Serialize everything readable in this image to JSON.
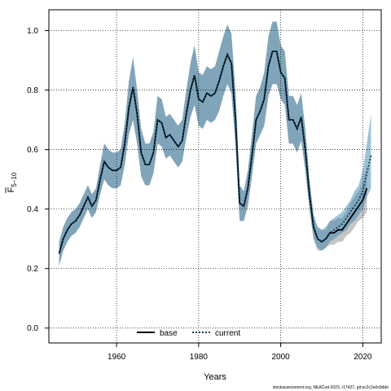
{
  "chart_data": {
    "type": "line",
    "xlabel": "Years",
    "ylabel_main": "F",
    "ylabel_sub": "5−10",
    "xlim": [
      1943.5,
      2024.5
    ],
    "ylim": [
      -0.05,
      1.07
    ],
    "xticks": [
      1960,
      1980,
      2000,
      2020
    ],
    "yticks": [
      0.0,
      0.2,
      0.4,
      0.6,
      0.8,
      1.0
    ],
    "ytick_labels": [
      "0.0",
      "0.2",
      "0.4",
      "0.6",
      "0.8",
      "1.0"
    ],
    "grid": true,
    "legend_placement": "bottom-center",
    "footer": "stockassessment.org, NEACod-2023, r17427, git:ec2c2a0c8dde",
    "series": [
      {
        "name": "base",
        "color": "#000000",
        "band_color": "#7f7f7f",
        "line_style": "solid",
        "x": [
          1946,
          1947,
          1948,
          1949,
          1950,
          1951,
          1952,
          1953,
          1954,
          1955,
          1956,
          1957,
          1958,
          1959,
          1960,
          1961,
          1962,
          1963,
          1964,
          1965,
          1966,
          1967,
          1968,
          1969,
          1970,
          1971,
          1972,
          1973,
          1974,
          1975,
          1976,
          1977,
          1978,
          1979,
          1980,
          1981,
          1982,
          1983,
          1984,
          1985,
          1986,
          1987,
          1988,
          1989,
          1990,
          1991,
          1992,
          1993,
          1994,
          1995,
          1996,
          1997,
          1998,
          1999,
          2000,
          2001,
          2002,
          2003,
          2004,
          2005,
          2006,
          2007,
          2008,
          2009,
          2010,
          2011,
          2012,
          2013,
          2014,
          2015,
          2016,
          2017,
          2018,
          2019,
          2020,
          2021
        ],
        "y": [
          0.25,
          0.3,
          0.33,
          0.35,
          0.36,
          0.38,
          0.41,
          0.44,
          0.41,
          0.43,
          0.5,
          0.56,
          0.54,
          0.53,
          0.53,
          0.54,
          0.62,
          0.74,
          0.81,
          0.72,
          0.59,
          0.55,
          0.55,
          0.59,
          0.7,
          0.69,
          0.64,
          0.65,
          0.63,
          0.61,
          0.63,
          0.72,
          0.8,
          0.85,
          0.77,
          0.76,
          0.79,
          0.78,
          0.79,
          0.83,
          0.88,
          0.92,
          0.89,
          0.7,
          0.42,
          0.41,
          0.47,
          0.58,
          0.7,
          0.73,
          0.77,
          0.88,
          0.93,
          0.93,
          0.86,
          0.84,
          0.7,
          0.7,
          0.67,
          0.71,
          0.6,
          0.45,
          0.34,
          0.3,
          0.29,
          0.3,
          0.32,
          0.32,
          0.33,
          0.33,
          0.35,
          0.37,
          0.39,
          0.41,
          0.43,
          0.47
        ],
        "y_low": [
          0.21,
          0.26,
          0.29,
          0.31,
          0.32,
          0.34,
          0.37,
          0.4,
          0.37,
          0.39,
          0.45,
          0.5,
          0.48,
          0.47,
          0.47,
          0.48,
          0.55,
          0.65,
          0.7,
          0.62,
          0.51,
          0.48,
          0.48,
          0.52,
          0.62,
          0.61,
          0.57,
          0.58,
          0.56,
          0.54,
          0.56,
          0.64,
          0.71,
          0.75,
          0.68,
          0.67,
          0.7,
          0.69,
          0.7,
          0.73,
          0.78,
          0.82,
          0.79,
          0.61,
          0.36,
          0.36,
          0.41,
          0.51,
          0.62,
          0.65,
          0.68,
          0.78,
          0.82,
          0.82,
          0.77,
          0.75,
          0.62,
          0.62,
          0.59,
          0.63,
          0.53,
          0.4,
          0.3,
          0.26,
          0.26,
          0.27,
          0.28,
          0.28,
          0.29,
          0.29,
          0.31,
          0.32,
          0.34,
          0.36,
          0.37,
          0.39
        ],
        "y_high": [
          0.29,
          0.34,
          0.37,
          0.39,
          0.4,
          0.42,
          0.45,
          0.48,
          0.45,
          0.47,
          0.55,
          0.62,
          0.6,
          0.59,
          0.59,
          0.6,
          0.69,
          0.83,
          0.91,
          0.8,
          0.67,
          0.62,
          0.62,
          0.66,
          0.78,
          0.77,
          0.71,
          0.72,
          0.7,
          0.68,
          0.7,
          0.8,
          0.89,
          0.95,
          0.86,
          0.85,
          0.88,
          0.87,
          0.88,
          0.93,
          0.98,
          1.02,
          0.99,
          0.79,
          0.48,
          0.46,
          0.53,
          0.65,
          0.78,
          0.81,
          0.86,
          0.98,
          1.03,
          1.03,
          0.95,
          0.93,
          0.78,
          0.78,
          0.75,
          0.79,
          0.67,
          0.5,
          0.38,
          0.34,
          0.33,
          0.33,
          0.36,
          0.36,
          0.37,
          0.37,
          0.39,
          0.42,
          0.44,
          0.46,
          0.49,
          0.55
        ]
      },
      {
        "name": "current",
        "color": "#0f3d57",
        "band_color": "#3b86b0",
        "line_style": "dotted",
        "x": [
          1946,
          1947,
          1948,
          1949,
          1950,
          1951,
          1952,
          1953,
          1954,
          1955,
          1956,
          1957,
          1958,
          1959,
          1960,
          1961,
          1962,
          1963,
          1964,
          1965,
          1966,
          1967,
          1968,
          1969,
          1970,
          1971,
          1972,
          1973,
          1974,
          1975,
          1976,
          1977,
          1978,
          1979,
          1980,
          1981,
          1982,
          1983,
          1984,
          1985,
          1986,
          1987,
          1988,
          1989,
          1990,
          1991,
          1992,
          1993,
          1994,
          1995,
          1996,
          1997,
          1998,
          1999,
          2000,
          2001,
          2002,
          2003,
          2004,
          2005,
          2006,
          2007,
          2008,
          2009,
          2010,
          2011,
          2012,
          2013,
          2014,
          2015,
          2016,
          2017,
          2018,
          2019,
          2020,
          2021,
          2022
        ],
        "y": [
          0.25,
          0.3,
          0.33,
          0.35,
          0.36,
          0.38,
          0.41,
          0.44,
          0.41,
          0.43,
          0.5,
          0.56,
          0.54,
          0.53,
          0.53,
          0.54,
          0.62,
          0.74,
          0.81,
          0.72,
          0.59,
          0.55,
          0.55,
          0.59,
          0.7,
          0.69,
          0.64,
          0.65,
          0.63,
          0.61,
          0.63,
          0.72,
          0.8,
          0.85,
          0.77,
          0.76,
          0.79,
          0.78,
          0.79,
          0.83,
          0.88,
          0.92,
          0.89,
          0.7,
          0.42,
          0.41,
          0.47,
          0.58,
          0.7,
          0.73,
          0.77,
          0.88,
          0.93,
          0.93,
          0.86,
          0.84,
          0.7,
          0.7,
          0.67,
          0.71,
          0.6,
          0.45,
          0.34,
          0.3,
          0.29,
          0.3,
          0.32,
          0.33,
          0.34,
          0.35,
          0.37,
          0.39,
          0.41,
          0.43,
          0.46,
          0.52,
          0.58
        ],
        "y_low": [
          0.21,
          0.26,
          0.29,
          0.31,
          0.32,
          0.34,
          0.37,
          0.4,
          0.37,
          0.39,
          0.45,
          0.5,
          0.48,
          0.47,
          0.47,
          0.48,
          0.55,
          0.65,
          0.7,
          0.62,
          0.51,
          0.48,
          0.48,
          0.52,
          0.62,
          0.61,
          0.57,
          0.58,
          0.56,
          0.54,
          0.56,
          0.64,
          0.71,
          0.75,
          0.68,
          0.67,
          0.7,
          0.69,
          0.7,
          0.73,
          0.78,
          0.82,
          0.79,
          0.61,
          0.36,
          0.36,
          0.41,
          0.51,
          0.62,
          0.65,
          0.68,
          0.78,
          0.82,
          0.82,
          0.77,
          0.75,
          0.62,
          0.62,
          0.59,
          0.63,
          0.53,
          0.4,
          0.3,
          0.27,
          0.26,
          0.27,
          0.29,
          0.3,
          0.31,
          0.32,
          0.33,
          0.35,
          0.36,
          0.38,
          0.4,
          0.44,
          0.47
        ],
        "y_high": [
          0.29,
          0.34,
          0.37,
          0.39,
          0.4,
          0.42,
          0.45,
          0.48,
          0.45,
          0.47,
          0.55,
          0.62,
          0.6,
          0.59,
          0.59,
          0.6,
          0.69,
          0.83,
          0.91,
          0.8,
          0.67,
          0.62,
          0.62,
          0.66,
          0.78,
          0.77,
          0.71,
          0.72,
          0.7,
          0.68,
          0.7,
          0.8,
          0.89,
          0.95,
          0.86,
          0.85,
          0.88,
          0.87,
          0.88,
          0.93,
          0.98,
          1.02,
          0.99,
          0.79,
          0.48,
          0.46,
          0.53,
          0.65,
          0.78,
          0.81,
          0.86,
          0.98,
          1.03,
          1.03,
          0.95,
          0.93,
          0.78,
          0.78,
          0.75,
          0.79,
          0.67,
          0.5,
          0.38,
          0.34,
          0.33,
          0.34,
          0.36,
          0.37,
          0.38,
          0.39,
          0.41,
          0.43,
          0.46,
          0.48,
          0.53,
          0.62,
          0.72
        ]
      }
    ]
  }
}
